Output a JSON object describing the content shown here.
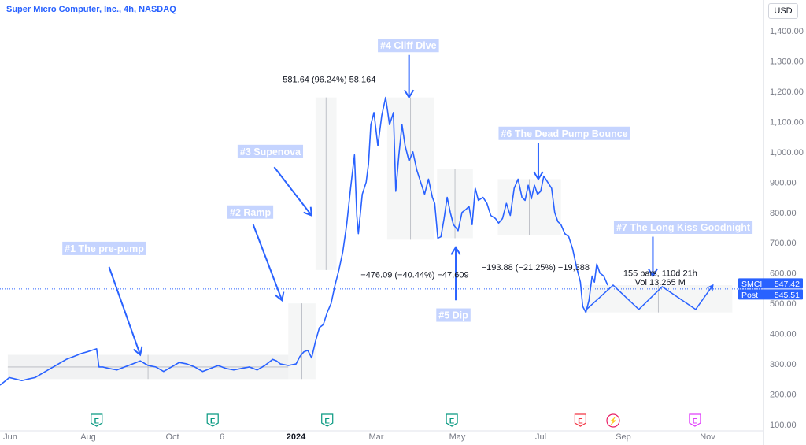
{
  "header": {
    "title": "Super Micro Computer, Inc., 4h, NASDAQ",
    "currency": "USD"
  },
  "chart_data": {
    "type": "line",
    "x_labels": [
      {
        "label": "Jun",
        "bold": false
      },
      {
        "label": "Aug",
        "bold": false
      },
      {
        "label": "Oct",
        "bold": false
      },
      {
        "label": "6",
        "bold": false
      },
      {
        "label": "2024",
        "bold": true
      },
      {
        "label": "Mar",
        "bold": false
      },
      {
        "label": "May",
        "bold": false
      },
      {
        "label": "Jul",
        "bold": false
      },
      {
        "label": "Sep",
        "bold": false
      },
      {
        "label": "Nov",
        "bold": false
      }
    ],
    "y_ticks": [
      "100.00",
      "200.00",
      "300.00",
      "400.00",
      "500.00",
      "600.00",
      "700.00",
      "800.00",
      "900.00",
      "1,000.00",
      "1,100.00",
      "1,200.00",
      "1,300.00",
      "1,400.00"
    ],
    "y_values": [
      100,
      200,
      300,
      400,
      500,
      600,
      700,
      800,
      900,
      1000,
      1100,
      1200,
      1300,
      1400
    ],
    "ylim": [
      80,
      1450
    ],
    "xlim": [
      0,
      980
    ],
    "price_series": [
      [
        0,
        230
      ],
      [
        5,
        240
      ],
      [
        12,
        255
      ],
      [
        20,
        250
      ],
      [
        28,
        245
      ],
      [
        36,
        250
      ],
      [
        45,
        255
      ],
      [
        55,
        270
      ],
      [
        65,
        285
      ],
      [
        75,
        300
      ],
      [
        85,
        315
      ],
      [
        95,
        325
      ],
      [
        105,
        335
      ],
      [
        112,
        340
      ],
      [
        118,
        345
      ],
      [
        124,
        350
      ],
      [
        127,
        290
      ],
      [
        132,
        290
      ],
      [
        140,
        285
      ],
      [
        150,
        280
      ],
      [
        160,
        290
      ],
      [
        170,
        300
      ],
      [
        180,
        310
      ],
      [
        190,
        295
      ],
      [
        200,
        290
      ],
      [
        210,
        275
      ],
      [
        220,
        290
      ],
      [
        230,
        305
      ],
      [
        240,
        300
      ],
      [
        250,
        290
      ],
      [
        260,
        275
      ],
      [
        270,
        285
      ],
      [
        280,
        295
      ],
      [
        290,
        285
      ],
      [
        300,
        280
      ],
      [
        310,
        285
      ],
      [
        320,
        290
      ],
      [
        330,
        280
      ],
      [
        340,
        295
      ],
      [
        350,
        315
      ],
      [
        355,
        310
      ],
      [
        360,
        300
      ],
      [
        370,
        295
      ],
      [
        380,
        300
      ],
      [
        385,
        325
      ],
      [
        390,
        340
      ],
      [
        395,
        345
      ],
      [
        400,
        320
      ],
      [
        405,
        375
      ],
      [
        410,
        420
      ],
      [
        415,
        430
      ],
      [
        420,
        470
      ],
      [
        425,
        500
      ],
      [
        430,
        560
      ],
      [
        435,
        610
      ],
      [
        440,
        670
      ],
      [
        445,
        760
      ],
      [
        450,
        880
      ],
      [
        455,
        990
      ],
      [
        458,
        790
      ],
      [
        460,
        730
      ],
      [
        465,
        860
      ],
      [
        470,
        900
      ],
      [
        473,
        960
      ],
      [
        476,
        1090
      ],
      [
        480,
        1130
      ],
      [
        485,
        1020
      ],
      [
        490,
        1120
      ],
      [
        495,
        1180
      ],
      [
        500,
        1090
      ],
      [
        505,
        1130
      ],
      [
        508,
        870
      ],
      [
        512,
        990
      ],
      [
        516,
        1090
      ],
      [
        520,
        1020
      ],
      [
        525,
        970
      ],
      [
        530,
        1000
      ],
      [
        535,
        940
      ],
      [
        540,
        900
      ],
      [
        545,
        860
      ],
      [
        550,
        910
      ],
      [
        555,
        850
      ],
      [
        558,
        830
      ],
      [
        562,
        715
      ],
      [
        566,
        720
      ],
      [
        570,
        780
      ],
      [
        574,
        850
      ],
      [
        578,
        800
      ],
      [
        582,
        760
      ],
      [
        588,
        740
      ],
      [
        593,
        800
      ],
      [
        598,
        810
      ],
      [
        602,
        820
      ],
      [
        606,
        760
      ],
      [
        610,
        880
      ],
      [
        614,
        840
      ],
      [
        620,
        850
      ],
      [
        625,
        830
      ],
      [
        630,
        790
      ],
      [
        636,
        780
      ],
      [
        640,
        765
      ],
      [
        645,
        780
      ],
      [
        650,
        830
      ],
      [
        655,
        790
      ],
      [
        660,
        880
      ],
      [
        665,
        910
      ],
      [
        670,
        850
      ],
      [
        674,
        840
      ],
      [
        678,
        890
      ],
      [
        682,
        845
      ],
      [
        686,
        890
      ],
      [
        690,
        860
      ],
      [
        694,
        870
      ],
      [
        698,
        920
      ],
      [
        703,
        900
      ],
      [
        708,
        880
      ],
      [
        712,
        800
      ],
      [
        716,
        770
      ],
      [
        720,
        760
      ],
      [
        725,
        730
      ],
      [
        730,
        720
      ],
      [
        735,
        680
      ],
      [
        740,
        620
      ],
      [
        745,
        570
      ],
      [
        748,
        490
      ],
      [
        752,
        470
      ],
      [
        756,
        510
      ],
      [
        760,
        590
      ],
      [
        763,
        570
      ],
      [
        766,
        630
      ],
      [
        770,
        600
      ],
      [
        775,
        590
      ],
      [
        780,
        560
      ]
    ],
    "last_price": {
      "label": "SMCI",
      "value": "547.42",
      "y": 547.42
    },
    "post_price": {
      "label": "Post",
      "value": "545.51",
      "y": 545.51
    },
    "projection": [
      [
        752,
        478
      ],
      [
        787,
        560
      ],
      [
        820,
        480
      ],
      [
        850,
        555
      ],
      [
        893,
        480
      ],
      [
        915,
        560
      ]
    ],
    "ranges": [
      {
        "x0": 10,
        "x1": 370,
        "y0": 250,
        "y1": 330,
        "shaded": true
      },
      {
        "x0": 370,
        "x1": 405,
        "y0": 250,
        "y1": 500,
        "shaded": false
      },
      {
        "x0": 405,
        "x1": 432,
        "y0": 610,
        "y1": 1180,
        "shaded": false
      },
      {
        "x0": 497,
        "x1": 557,
        "y0": 710,
        "y1": 1180,
        "shaded": false
      },
      {
        "x0": 561,
        "x1": 607,
        "y0": 715,
        "y1": 945,
        "shaded": false
      },
      {
        "x0": 639,
        "x1": 720,
        "y0": 725,
        "y1": 910,
        "shaded": false
      },
      {
        "x0": 750,
        "x1": 940,
        "y0": 470,
        "y1": 560,
        "shaded": false
      }
    ],
    "measurements": [
      {
        "text": "581.64 (96.24%) 58,164",
        "x": 363,
        "y": 1240
      },
      {
        "text": "−476.09 (−40.44%) −47,609",
        "x": 463,
        "y": 595
      },
      {
        "text": "−193.88 (−21.25%) −19,388",
        "x": 618,
        "y": 620
      },
      {
        "text": "155 bars, 110d 21h",
        "x": 800,
        "y": 600
      },
      {
        "text": "Vol 13.265 M",
        "x": 815,
        "y": 570
      }
    ],
    "annotations": [
      {
        "text": "#1 The pre-pump",
        "x": 80,
        "y": 680,
        "arrow": [
          [
            140,
            620
          ],
          [
            180,
            330
          ]
        ]
      },
      {
        "text": "#2 Ramp",
        "x": 292,
        "y": 800,
        "arrow": [
          [
            325,
            760
          ],
          [
            362,
            510
          ]
        ]
      },
      {
        "text": "#3 Supenova",
        "x": 305,
        "y": 1000,
        "arrow": [
          [
            352,
            950
          ],
          [
            400,
            790
          ]
        ]
      },
      {
        "text": "#4 Cliff Dive",
        "x": 485,
        "y": 1350,
        "arrow": [
          [
            525,
            1320
          ],
          [
            525,
            1180
          ]
        ]
      },
      {
        "text": "#5 Dip",
        "x": 560,
        "y": 460,
        "arrow": [
          [
            585,
            510
          ],
          [
            585,
            685
          ]
        ]
      },
      {
        "text": "#6 The Dead Pump Bounce",
        "x": 640,
        "y": 1060,
        "arrow": [
          [
            691,
            1030
          ],
          [
            691,
            910
          ]
        ]
      },
      {
        "text": "#7 The Long Kiss Goodnight",
        "x": 788,
        "y": 750,
        "arrow": [
          [
            838,
            720
          ],
          [
            838,
            590
          ]
        ]
      }
    ],
    "events": [
      {
        "label": "E",
        "x": 124,
        "color": "#089981"
      },
      {
        "label": "E",
        "x": 273,
        "color": "#089981"
      },
      {
        "label": "E",
        "x": 420,
        "color": "#089981"
      },
      {
        "label": "E",
        "x": 580,
        "color": "#089981"
      },
      {
        "label": "E",
        "x": 745,
        "color": "#f23645"
      },
      {
        "label": "⚡",
        "x": 787,
        "color": "#e91e63"
      },
      {
        "label": "E",
        "x": 892,
        "color": "#e040fb"
      }
    ],
    "colors": {
      "line": "#2962ff",
      "annotation_bg": "#c5d4ff",
      "price_tag": "#2962ff"
    }
  }
}
